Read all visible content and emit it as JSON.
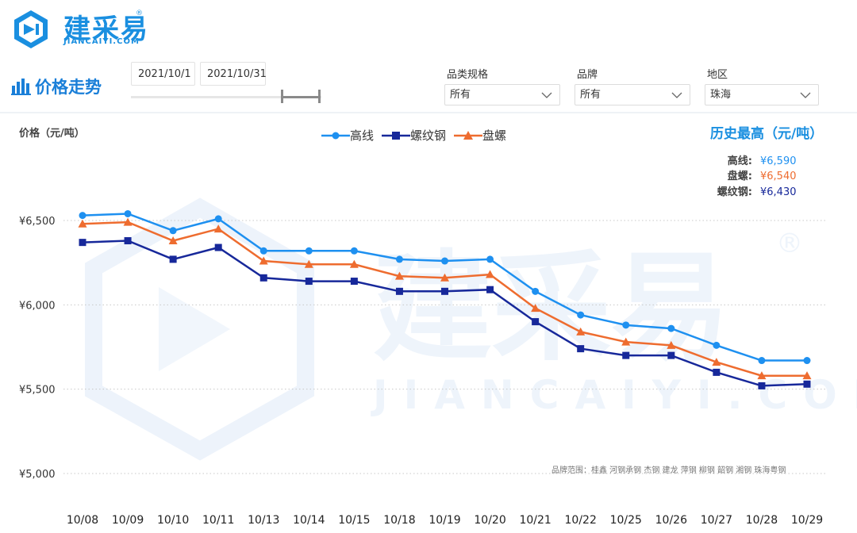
{
  "brand": {
    "name": "建采易",
    "sub": "JIANCAIYI.COM",
    "reg": "®",
    "color": "#1a8fe0"
  },
  "section": {
    "title": "价格走势"
  },
  "dates": {
    "start": "2021/10/1",
    "end": "2021/10/31"
  },
  "filters": [
    {
      "label": "品类规格",
      "value": "所有"
    },
    {
      "label": "品牌",
      "value": "所有"
    },
    {
      "label": "地区",
      "value": "珠海"
    }
  ],
  "history": {
    "title": "历史最高（元/吨）",
    "rows": [
      {
        "name": "高线:",
        "value": "¥6,590",
        "color": "#1e90f0"
      },
      {
        "name": "盘螺:",
        "value": "¥6,540",
        "color": "#ee6c2f"
      },
      {
        "name": "螺纹钢:",
        "value": "¥6,430",
        "color": "#17289a"
      }
    ]
  },
  "brand_range": "品牌范围：桂鑫  河钢承钢  杰钢  建龙  萍钢  柳钢  韶钢  湘钢  珠海粤钢",
  "chart_data": {
    "type": "line",
    "ylabel": "价格（元/吨）",
    "legend_placement": "top",
    "grid": "horizontal-dotted",
    "ylim": [
      5000,
      6500
    ],
    "yticks": [
      {
        "value": 6500,
        "label": "¥6,500"
      },
      {
        "value": 6000,
        "label": "¥6,000"
      },
      {
        "value": 5500,
        "label": "¥5,500"
      },
      {
        "value": 5000,
        "label": "¥5,000"
      }
    ],
    "categories": [
      "10/08",
      "10/09",
      "10/10",
      "10/11",
      "10/13",
      "10/14",
      "10/15",
      "10/18",
      "10/19",
      "10/20",
      "10/21",
      "10/22",
      "10/25",
      "10/26",
      "10/27",
      "10/28",
      "10/29"
    ],
    "series": [
      {
        "name": "高线",
        "color": "#1e90f0",
        "marker": "circle",
        "values": [
          6530,
          6540,
          6440,
          6510,
          6320,
          6320,
          6320,
          6270,
          6260,
          6270,
          6080,
          5940,
          5880,
          5860,
          5760,
          5670,
          5670
        ]
      },
      {
        "name": "螺纹钢",
        "color": "#17289a",
        "marker": "square",
        "values": [
          6370,
          6380,
          6270,
          6340,
          6160,
          6140,
          6140,
          6080,
          6080,
          6090,
          5900,
          5740,
          5700,
          5700,
          5600,
          5520,
          5530
        ]
      },
      {
        "name": "盘螺",
        "color": "#ee6c2f",
        "marker": "triangle",
        "values": [
          6480,
          6490,
          6380,
          6450,
          6260,
          6240,
          6240,
          6170,
          6160,
          6180,
          5980,
          5840,
          5780,
          5760,
          5660,
          5580,
          5580
        ]
      }
    ]
  }
}
